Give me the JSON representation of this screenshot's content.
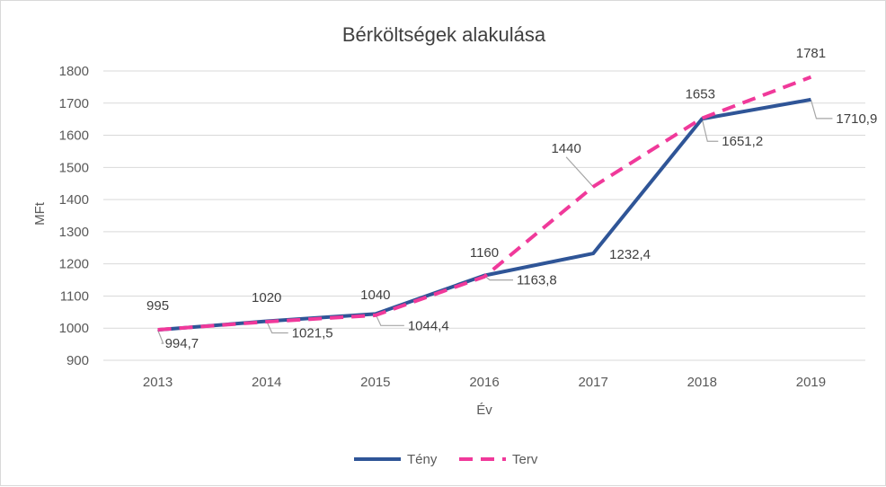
{
  "chart_data": {
    "type": "line",
    "title": "Bérköltségek alakulása",
    "xlabel": "Év",
    "ylabel": "MFt",
    "categories": [
      "2013",
      "2014",
      "2015",
      "2016",
      "2017",
      "2018",
      "2019"
    ],
    "ylim": [
      900,
      1800
    ],
    "yticks": [
      900,
      1000,
      1100,
      1200,
      1300,
      1400,
      1500,
      1600,
      1700,
      1800
    ],
    "grid": true,
    "legend_position": "bottom",
    "series": [
      {
        "name": "Tény",
        "values": [
          994.7,
          1021.5,
          1044.4,
          1163.8,
          1232.4,
          1651.2,
          1710.9
        ],
        "labels": [
          "994,7",
          "1021,5",
          "1044,4",
          "1163,8",
          "1232,4",
          "1651,2",
          "1710,9"
        ],
        "color": "#2F5597",
        "style": "solid"
      },
      {
        "name": "Terv",
        "values": [
          995,
          1020,
          1040,
          1160,
          1440,
          1653,
          1781
        ],
        "labels": [
          "995",
          "1020",
          "1040",
          "1160",
          "1440",
          "1653",
          "1781"
        ],
        "color": "#F0399A",
        "style": "dashed"
      }
    ]
  }
}
